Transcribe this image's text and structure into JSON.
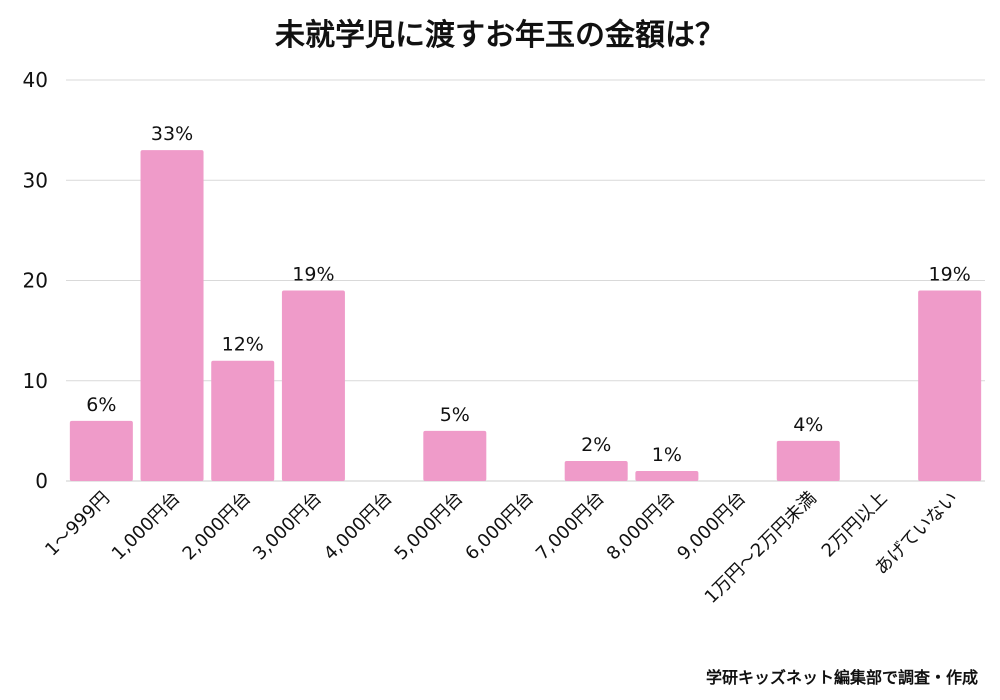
{
  "chart_data": {
    "type": "bar",
    "title": "未就学児に渡すお年玉の金額は？",
    "categories": [
      "1〜999円",
      "1,000円台",
      "2,000円台",
      "3,000円台",
      "4,000円台",
      "5,000円台",
      "6,000円台",
      "7,000円台",
      "8,000円台",
      "9,000円台",
      "1万円〜2万円未満",
      "2万円以上",
      "あげていない"
    ],
    "values": [
      6,
      33,
      12,
      19,
      0,
      5,
      0,
      2,
      1,
      0,
      4,
      0,
      19
    ],
    "data_labels": [
      "6%",
      "33%",
      "12%",
      "19%",
      "",
      "5%",
      "",
      "2%",
      "1%",
      "",
      "4%",
      "",
      "19%"
    ],
    "y_ticks": [
      "0",
      "10",
      "20",
      "30",
      "40"
    ],
    "ylim": [
      0,
      40
    ],
    "xlabel": "",
    "ylabel": "",
    "grid": true,
    "bar_color": "#ef9bc9",
    "credit": "学研キッズネット編集部で調査・作成"
  }
}
